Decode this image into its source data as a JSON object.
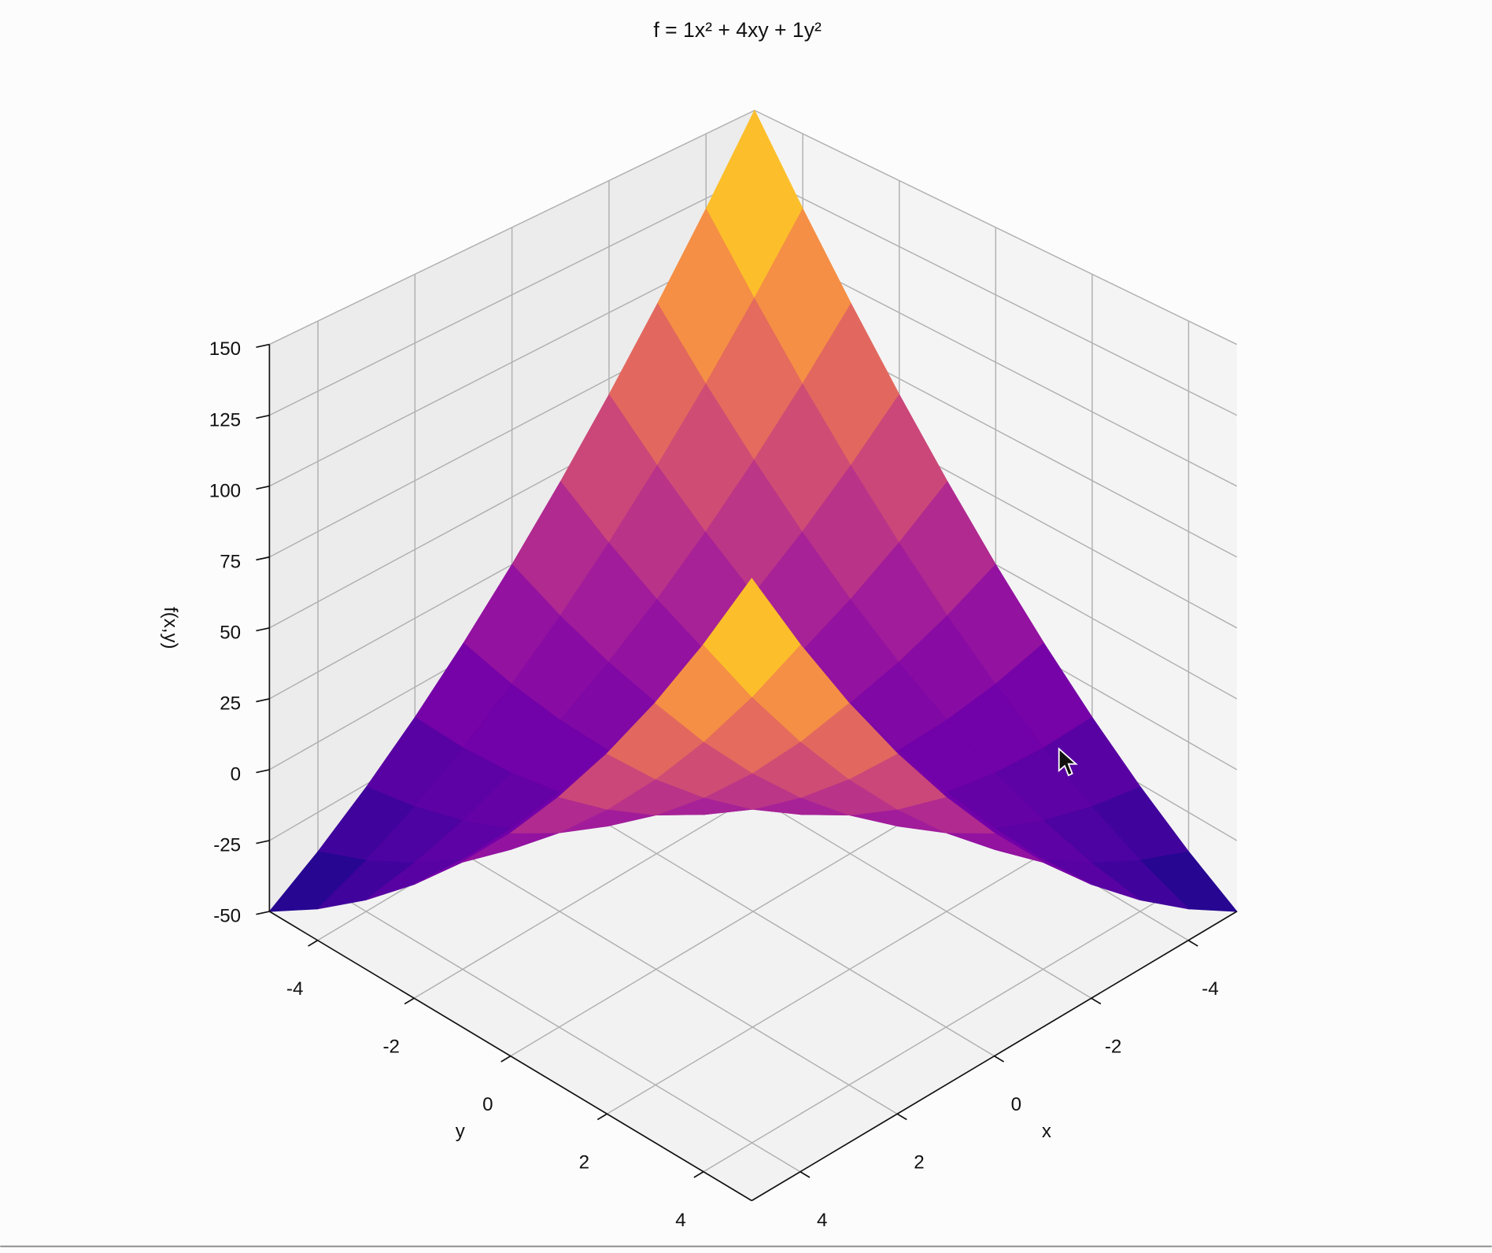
{
  "chart_data": {
    "type": "surface",
    "title": "f = 1x² + 4xy + 1y²",
    "xlabel": "x",
    "ylabel": "y",
    "zlabel": "f(x,y)",
    "colormap": "plasma",
    "grid": true,
    "xlim": [
      -5,
      5
    ],
    "ylim": [
      -5,
      5
    ],
    "zlim": [
      -50,
      150
    ],
    "xticks": [
      -4,
      -2,
      0,
      2,
      4
    ],
    "yticks": [
      -4,
      -2,
      0,
      2,
      4
    ],
    "zticks": [
      -50,
      -25,
      0,
      25,
      50,
      75,
      100,
      125,
      150
    ],
    "x": [
      -5,
      -4,
      -3,
      -2,
      -1,
      0,
      1,
      2,
      3,
      4,
      5
    ],
    "y": [
      -5,
      -4,
      -3,
      -2,
      -1,
      0,
      1,
      2,
      3,
      4,
      5
    ],
    "z": [
      [
        150,
        121,
        94,
        69,
        46,
        25,
        6,
        -11,
        -26,
        -39,
        -50
      ],
      [
        121,
        96,
        73,
        52,
        33,
        16,
        1,
        -12,
        -23,
        -32,
        -39
      ],
      [
        94,
        73,
        54,
        37,
        22,
        9,
        -2,
        -11,
        -18,
        -23,
        -26
      ],
      [
        69,
        52,
        37,
        24,
        13,
        4,
        -3,
        -8,
        -11,
        -12,
        -11
      ],
      [
        46,
        33,
        22,
        13,
        6,
        1,
        -2,
        -3,
        -2,
        1,
        6
      ],
      [
        25,
        16,
        9,
        4,
        1,
        0,
        1,
        4,
        9,
        16,
        25
      ],
      [
        6,
        1,
        -2,
        -3,
        -2,
        1,
        6,
        13,
        22,
        33,
        46
      ],
      [
        -11,
        -12,
        -11,
        -8,
        -3,
        4,
        13,
        24,
        37,
        52,
        69
      ],
      [
        -26,
        -23,
        -18,
        -11,
        -2,
        9,
        22,
        37,
        54,
        73,
        94
      ],
      [
        -39,
        -32,
        -23,
        -12,
        1,
        16,
        33,
        52,
        73,
        96,
        121
      ],
      [
        -50,
        -39,
        -26,
        -11,
        6,
        25,
        46,
        69,
        94,
        121,
        150
      ]
    ]
  }
}
